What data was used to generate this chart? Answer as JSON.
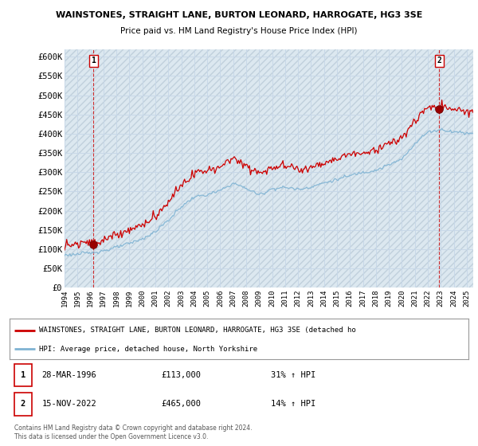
{
  "title1": "WAINSTONES, STRAIGHT LANE, BURTON LEONARD, HARROGATE, HG3 3SE",
  "title2": "Price paid vs. HM Land Registry's House Price Index (HPI)",
  "ylim": [
    0,
    620000
  ],
  "yticks": [
    0,
    50000,
    100000,
    150000,
    200000,
    250000,
    300000,
    350000,
    400000,
    450000,
    500000,
    550000,
    600000
  ],
  "ytick_labels": [
    "£0",
    "£50K",
    "£100K",
    "£150K",
    "£200K",
    "£250K",
    "£300K",
    "£350K",
    "£400K",
    "£450K",
    "£500K",
    "£550K",
    "£600K"
  ],
  "xlim_start": 1994.0,
  "xlim_end": 2025.5,
  "xticks": [
    1994,
    1995,
    1996,
    1997,
    1998,
    1999,
    2000,
    2001,
    2002,
    2003,
    2004,
    2005,
    2006,
    2007,
    2008,
    2009,
    2010,
    2011,
    2012,
    2013,
    2014,
    2015,
    2016,
    2017,
    2018,
    2019,
    2020,
    2021,
    2022,
    2023,
    2024,
    2025
  ],
  "sale1_x": 1996.23,
  "sale1_y": 113000,
  "sale1_label": "1",
  "sale2_x": 2022.87,
  "sale2_y": 465000,
  "sale2_label": "2",
  "red_line_color": "#cc0000",
  "blue_line_color": "#7fb3d3",
  "sale_marker_color": "#990000",
  "annotation_box_color": "#cc0000",
  "grid_color": "#c8d8e8",
  "bg_color": "#ffffff",
  "plot_bg_color": "#dce8f0",
  "hatch_color": "#c0d0dc",
  "legend_label1": "WAINSTONES, STRAIGHT LANE, BURTON LEONARD, HARROGATE, HG3 3SE (detached ho",
  "legend_label2": "HPI: Average price, detached house, North Yorkshire",
  "note1_num": "1",
  "note1_date": "28-MAR-1996",
  "note1_price": "£113,000",
  "note1_hpi": "31% ↑ HPI",
  "note2_num": "2",
  "note2_date": "15-NOV-2022",
  "note2_price": "£465,000",
  "note2_hpi": "14% ↑ HPI",
  "footer": "Contains HM Land Registry data © Crown copyright and database right 2024.\nThis data is licensed under the Open Government Licence v3.0."
}
